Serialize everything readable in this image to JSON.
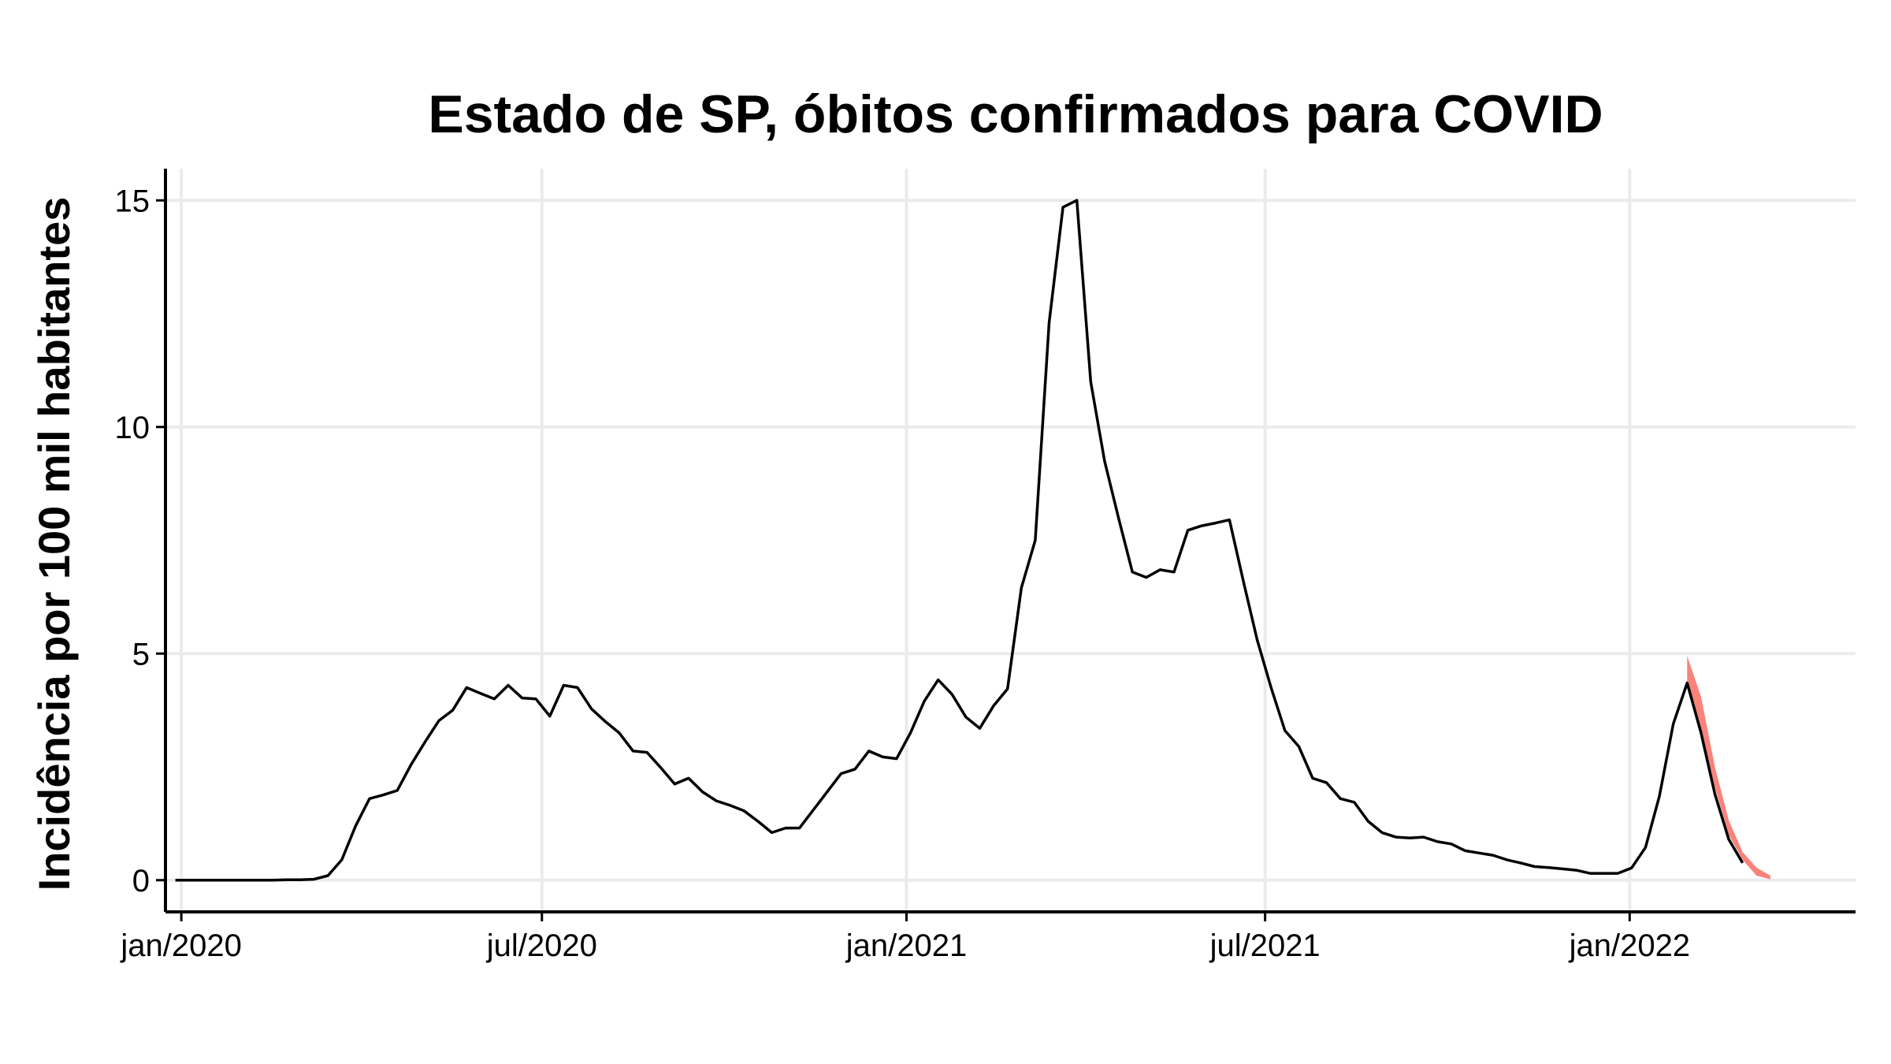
{
  "chart_data": {
    "type": "line",
    "title": "Estado de SP, óbitos confirmados para COVID",
    "xlabel": "",
    "ylabel": "Incidência por 100 mil habitantes",
    "xlim": [
      "2019-12-24",
      "2022-04-25"
    ],
    "ylim": [
      -0.7,
      15.7
    ],
    "x_ticks": [
      {
        "date": "2020-01-01",
        "label": "jan/2020"
      },
      {
        "date": "2020-07-01",
        "label": "jul/2020"
      },
      {
        "date": "2021-01-01",
        "label": "jan/2021"
      },
      {
        "date": "2021-07-01",
        "label": "jul/2021"
      },
      {
        "date": "2022-01-01",
        "label": "jan/2022"
      }
    ],
    "y_ticks": [
      0,
      5,
      10,
      15
    ],
    "grid": true,
    "colors": {
      "line": "#000000",
      "band": "#f8766d"
    },
    "series": [
      {
        "values": [
          [
            "2019-12-29",
            0.0
          ],
          [
            "2020-01-05",
            0.0
          ],
          [
            "2020-01-12",
            0.0
          ],
          [
            "2020-01-19",
            0.0
          ],
          [
            "2020-01-26",
            0.0
          ],
          [
            "2020-02-02",
            0.0
          ],
          [
            "2020-02-09",
            0.0
          ],
          [
            "2020-02-16",
            0.0
          ],
          [
            "2020-02-23",
            0.01
          ],
          [
            "2020-03-01",
            0.01
          ],
          [
            "2020-03-08",
            0.02
          ],
          [
            "2020-03-15",
            0.1
          ],
          [
            "2020-03-22",
            0.45
          ],
          [
            "2020-03-29",
            1.2
          ],
          [
            "2020-04-05",
            1.8
          ],
          [
            "2020-04-12",
            1.88
          ],
          [
            "2020-04-19",
            1.98
          ],
          [
            "2020-04-26",
            2.55
          ],
          [
            "2020-05-03",
            3.05
          ],
          [
            "2020-05-10",
            3.52
          ],
          [
            "2020-05-17",
            3.75
          ],
          [
            "2020-05-24",
            4.25
          ],
          [
            "2020-05-31",
            4.12
          ],
          [
            "2020-06-07",
            4.0
          ],
          [
            "2020-06-14",
            4.3
          ],
          [
            "2020-06-21",
            4.02
          ],
          [
            "2020-06-28",
            4.0
          ],
          [
            "2020-07-05",
            3.62
          ],
          [
            "2020-07-12",
            4.3
          ],
          [
            "2020-07-19",
            4.25
          ],
          [
            "2020-07-26",
            3.78
          ],
          [
            "2020-08-02",
            3.5
          ],
          [
            "2020-08-09",
            3.25
          ],
          [
            "2020-08-16",
            2.85
          ],
          [
            "2020-08-23",
            2.82
          ],
          [
            "2020-08-30",
            2.48
          ],
          [
            "2020-09-06",
            2.12
          ],
          [
            "2020-09-13",
            2.25
          ],
          [
            "2020-09-20",
            1.95
          ],
          [
            "2020-09-27",
            1.75
          ],
          [
            "2020-10-04",
            1.65
          ],
          [
            "2020-10-11",
            1.53
          ],
          [
            "2020-10-18",
            1.3
          ],
          [
            "2020-10-25",
            1.05
          ],
          [
            "2020-11-01",
            1.15
          ],
          [
            "2020-11-08",
            1.15
          ],
          [
            "2020-11-15",
            1.55
          ],
          [
            "2020-11-22",
            1.95
          ],
          [
            "2020-11-29",
            2.35
          ],
          [
            "2020-12-06",
            2.45
          ],
          [
            "2020-12-13",
            2.85
          ],
          [
            "2020-12-20",
            2.72
          ],
          [
            "2020-12-27",
            2.68
          ],
          [
            "2021-01-03",
            3.25
          ],
          [
            "2021-01-10",
            3.95
          ],
          [
            "2021-01-17",
            4.42
          ],
          [
            "2021-01-24",
            4.1
          ],
          [
            "2021-01-31",
            3.6
          ],
          [
            "2021-02-07",
            3.35
          ],
          [
            "2021-02-14",
            3.85
          ],
          [
            "2021-02-21",
            4.22
          ],
          [
            "2021-02-28",
            6.45
          ],
          [
            "2021-03-07",
            7.5
          ],
          [
            "2021-03-14",
            12.3
          ],
          [
            "2021-03-21",
            14.85
          ],
          [
            "2021-03-28",
            15.0
          ],
          [
            "2021-04-04",
            11.0
          ],
          [
            "2021-04-11",
            9.25
          ],
          [
            "2021-04-18",
            8.0
          ],
          [
            "2021-04-25",
            6.8
          ],
          [
            "2021-05-02",
            6.68
          ],
          [
            "2021-05-09",
            6.85
          ],
          [
            "2021-05-16",
            6.8
          ],
          [
            "2021-05-23",
            7.72
          ],
          [
            "2021-05-30",
            7.82
          ],
          [
            "2021-06-06",
            7.88
          ],
          [
            "2021-06-13",
            7.95
          ],
          [
            "2021-06-20",
            6.6
          ],
          [
            "2021-06-27",
            5.3
          ],
          [
            "2021-07-04",
            4.25
          ],
          [
            "2021-07-11",
            3.3
          ],
          [
            "2021-07-18",
            2.95
          ],
          [
            "2021-07-25",
            2.25
          ],
          [
            "2021-08-01",
            2.15
          ],
          [
            "2021-08-08",
            1.8
          ],
          [
            "2021-08-15",
            1.72
          ],
          [
            "2021-08-22",
            1.3
          ],
          [
            "2021-08-29",
            1.05
          ],
          [
            "2021-09-05",
            0.95
          ],
          [
            "2021-09-12",
            0.93
          ],
          [
            "2021-09-19",
            0.95
          ],
          [
            "2021-09-26",
            0.85
          ],
          [
            "2021-10-03",
            0.8
          ],
          [
            "2021-10-10",
            0.65
          ],
          [
            "2021-10-17",
            0.6
          ],
          [
            "2021-10-24",
            0.55
          ],
          [
            "2021-10-31",
            0.45
          ],
          [
            "2021-11-07",
            0.38
          ],
          [
            "2021-11-14",
            0.3
          ],
          [
            "2021-11-21",
            0.28
          ],
          [
            "2021-11-28",
            0.25
          ],
          [
            "2021-12-05",
            0.22
          ],
          [
            "2021-12-12",
            0.15
          ],
          [
            "2021-12-19",
            0.15
          ],
          [
            "2021-12-26",
            0.15
          ],
          [
            "2022-01-02",
            0.27
          ],
          [
            "2022-01-09",
            0.72
          ],
          [
            "2022-01-16",
            1.85
          ],
          [
            "2022-01-23",
            3.45
          ],
          [
            "2022-01-30",
            4.35
          ],
          [
            "2022-02-06",
            3.25
          ],
          [
            "2022-02-13",
            1.9
          ],
          [
            "2022-02-20",
            0.9
          ],
          [
            "2022-02-27",
            0.38
          ]
        ]
      }
    ],
    "band": {
      "x": [
        "2022-01-30",
        "2022-02-06",
        "2022-02-13",
        "2022-02-20",
        "2022-02-27",
        "2022-03-06",
        "2022-03-13"
      ],
      "lower": [
        4.3,
        3.35,
        2.05,
        1.0,
        0.45,
        0.1,
        0.02
      ],
      "upper": [
        4.95,
        4.05,
        2.5,
        1.32,
        0.62,
        0.28,
        0.1
      ]
    }
  }
}
